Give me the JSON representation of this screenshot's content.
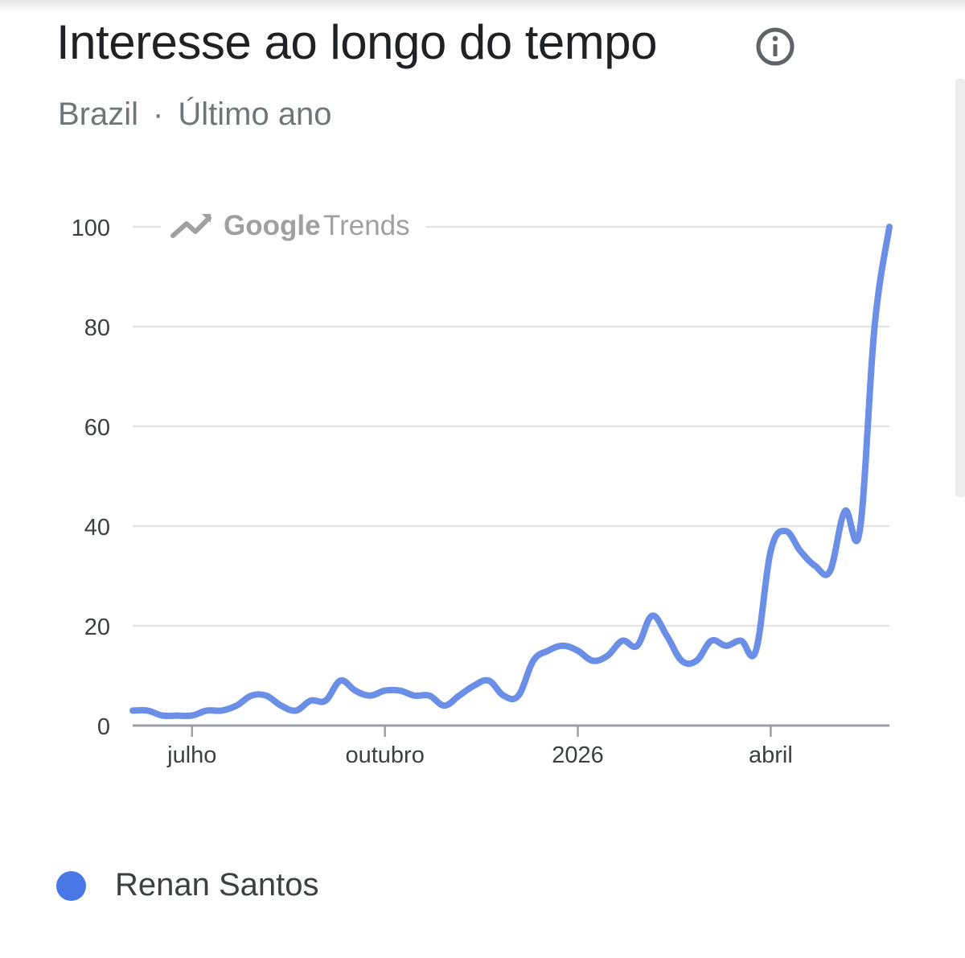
{
  "title": "Interesse ao longo do tempo",
  "subtitle": {
    "region": "Brazil",
    "separator": "·",
    "period": "Último ano"
  },
  "icons": {
    "info": "info-icon",
    "watermark": "trending-up-icon"
  },
  "watermark": {
    "part1": "Google",
    "part2": "Trends"
  },
  "colors": {
    "series": "#6b8fe6",
    "legend_dot": "#4a77e6",
    "grid": "#e4e4e4",
    "axis": "#9aa0a6"
  },
  "legend": {
    "label": "Renan Santos"
  },
  "chart_data": {
    "type": "line",
    "title": "Interesse ao longo do tempo",
    "xlabel": "",
    "ylabel": "",
    "ylim": [
      0,
      100
    ],
    "grid": true,
    "y_ticks": [
      0,
      20,
      40,
      60,
      80,
      100
    ],
    "x_ticks": [
      {
        "label": "julho",
        "index": 4
      },
      {
        "label": "outubro",
        "index": 17
      },
      {
        "label": "2026",
        "index": 30
      },
      {
        "label": "abril",
        "index": 43
      }
    ],
    "series": [
      {
        "name": "Renan Santos",
        "values": [
          3,
          3,
          2,
          2,
          2,
          3,
          3,
          4,
          6,
          6,
          4,
          3,
          5,
          5,
          9,
          7,
          6,
          7,
          7,
          6,
          6,
          4,
          6,
          8,
          9,
          6,
          6,
          13,
          15,
          16,
          15,
          13,
          14,
          17,
          16,
          22,
          18,
          13,
          13,
          17,
          16,
          17,
          15,
          35,
          39,
          35,
          32,
          31,
          43,
          39,
          80,
          100
        ]
      }
    ]
  }
}
